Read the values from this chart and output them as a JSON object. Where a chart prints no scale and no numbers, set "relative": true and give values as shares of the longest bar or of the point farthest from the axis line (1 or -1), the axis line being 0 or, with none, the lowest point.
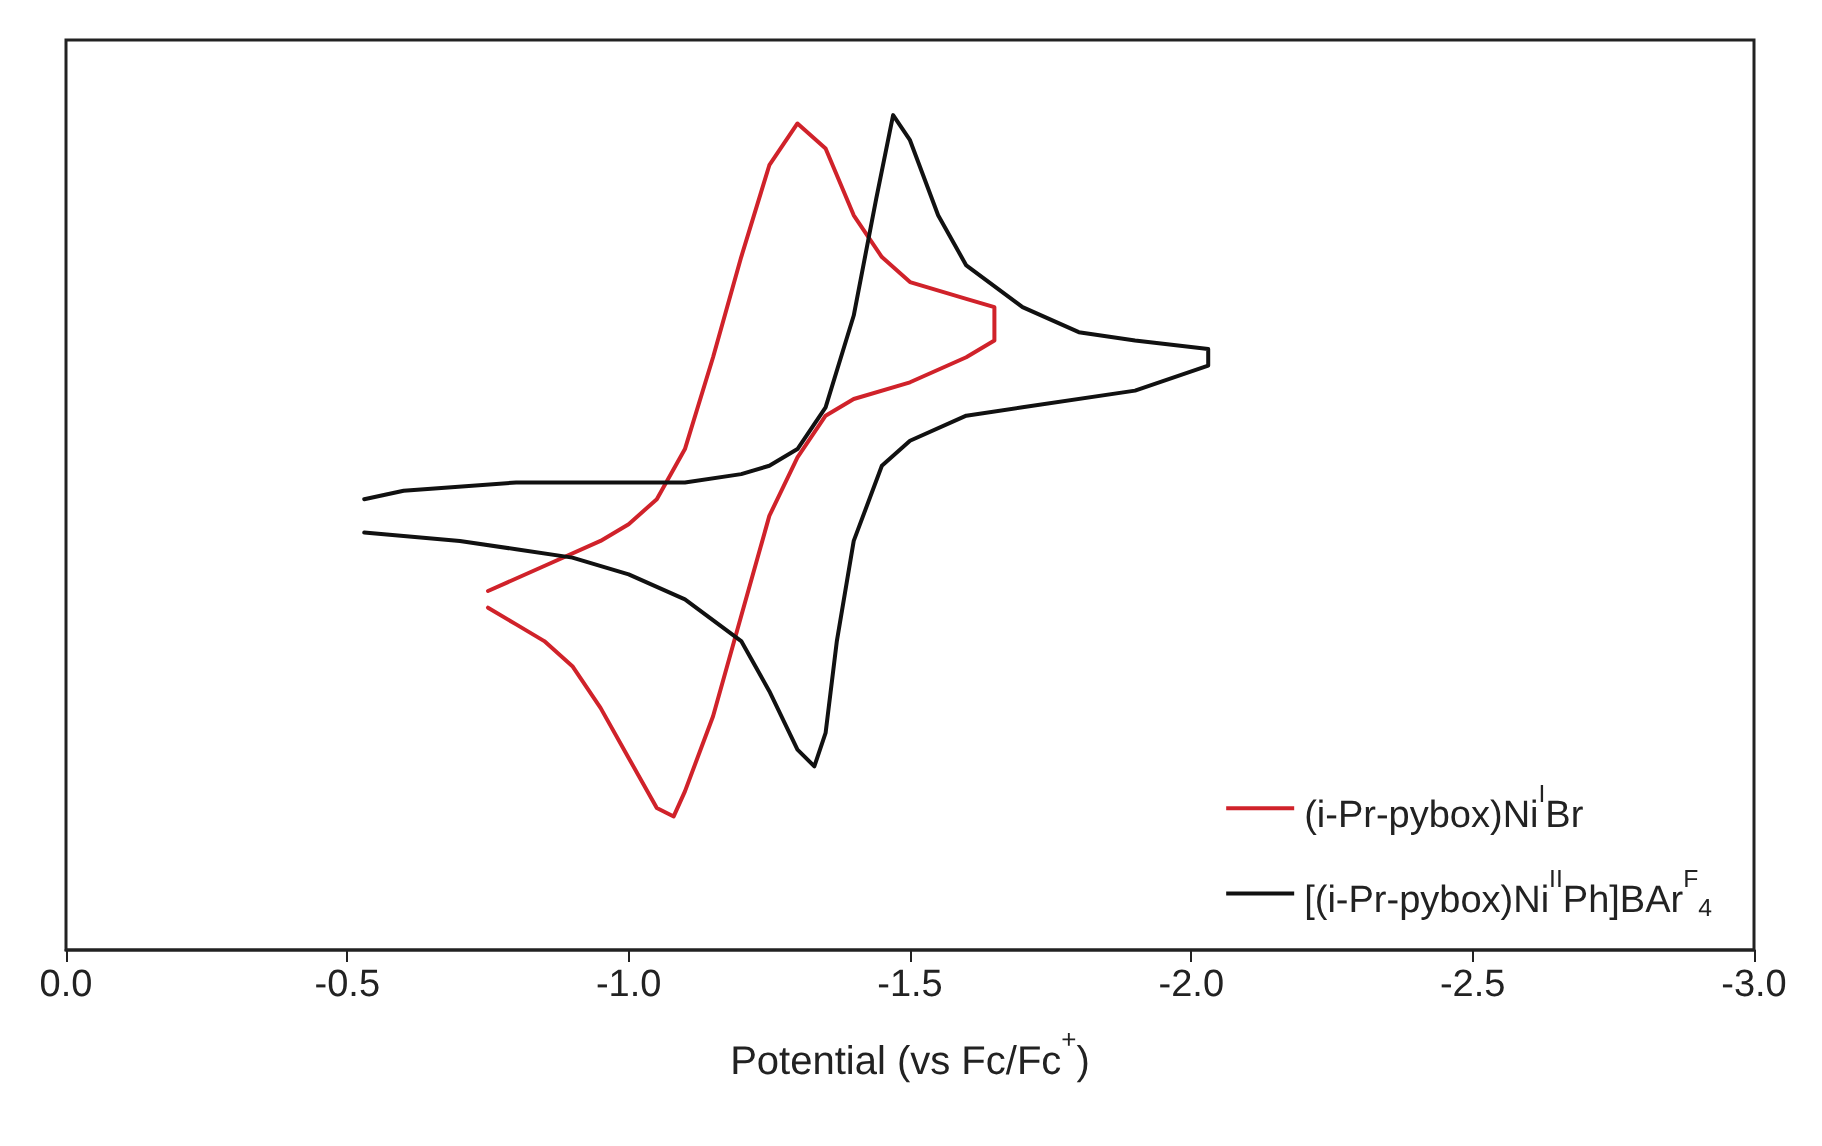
{
  "chart_data": {
    "type": "line",
    "relative": true,
    "xlabel": "Potential (vs Fc/Fc$^{+}$)",
    "xlim": [
      0,
      -3
    ],
    "xticks": [
      {
        "value": 0,
        "label": "0.0"
      },
      -0.5,
      {
        "value": -1,
        "label": "-1.0"
      },
      -1.5,
      {
        "value": -2,
        "label": "-2.0"
      },
      -2.5,
      {
        "value": -3,
        "label": "-3.0"
      }
    ],
    "tick_labels": "x",
    "grid": false,
    "legend": "bottom right",
    "marker": "none",
    "line_style": "solid",
    "series": [
      {
        "name": "(i-Pr-pybox)Ni$^{I}$Br",
        "color": "#d0222a",
        "x": [
          -0.75,
          -0.85,
          -0.95,
          -1.0,
          -1.05,
          -1.1,
          -1.15,
          -1.2,
          -1.25,
          -1.3,
          -1.35,
          -1.4,
          -1.45,
          -1.5,
          -1.6,
          -1.65,
          -1.65,
          -1.6,
          -1.5,
          -1.4,
          -1.35,
          -1.3,
          -1.25,
          -1.2,
          -1.15,
          -1.1,
          -1.08,
          -1.05,
          -1.0,
          -0.95,
          -0.9,
          -0.85,
          -0.8,
          -0.75
        ],
        "values": [
          0.43,
          0.46,
          0.49,
          0.51,
          0.54,
          0.6,
          0.71,
          0.83,
          0.94,
          0.99,
          0.96,
          0.88,
          0.83,
          0.8,
          0.78,
          0.77,
          0.73,
          0.71,
          0.68,
          0.66,
          0.64,
          0.59,
          0.52,
          0.4,
          0.28,
          0.19,
          0.16,
          0.17,
          0.23,
          0.29,
          0.34,
          0.37,
          0.39,
          0.41
        ]
      },
      {
        "name": "[(i-Pr-pybox)Ni$^{II}$Ph]BAr$^{F}$$_{4}$",
        "color": "#111111",
        "x": [
          -0.53,
          -0.6,
          -0.8,
          -1.0,
          -1.1,
          -1.2,
          -1.25,
          -1.3,
          -1.35,
          -1.4,
          -1.44,
          -1.47,
          -1.5,
          -1.55,
          -1.6,
          -1.7,
          -1.8,
          -1.9,
          -2.03,
          -2.03,
          -1.9,
          -1.7,
          -1.6,
          -1.5,
          -1.45,
          -1.4,
          -1.37,
          -1.35,
          -1.33,
          -1.3,
          -1.25,
          -1.2,
          -1.1,
          -1.0,
          -0.9,
          -0.8,
          -0.7,
          -0.53
        ],
        "values": [
          0.54,
          0.55,
          0.56,
          0.56,
          0.56,
          0.57,
          0.58,
          0.6,
          0.65,
          0.76,
          0.9,
          1.0,
          0.97,
          0.88,
          0.82,
          0.77,
          0.74,
          0.73,
          0.72,
          0.7,
          0.67,
          0.65,
          0.64,
          0.61,
          0.58,
          0.49,
          0.37,
          0.26,
          0.22,
          0.24,
          0.31,
          0.37,
          0.42,
          0.45,
          0.47,
          0.48,
          0.49,
          0.5
        ]
      }
    ]
  }
}
